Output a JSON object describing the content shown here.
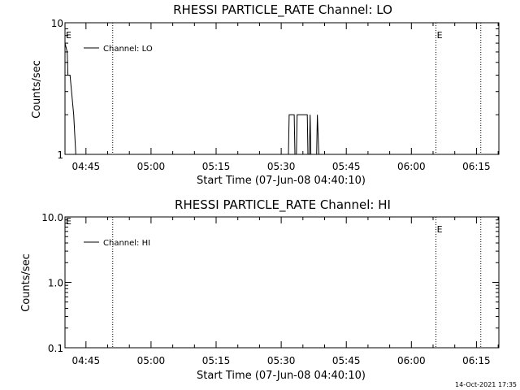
{
  "chart_data": [
    {
      "type": "line",
      "title": "RHESSI PARTICLE_RATE Channel: LO",
      "xlabel": "Start Time (07-Jun-08 04:40:10)",
      "ylabel": "Counts/sec",
      "yscale": "log",
      "ylim": [
        1,
        10
      ],
      "xlim": [
        "04:40:10",
        "06:20:10"
      ],
      "x_ticks": [
        "04:45",
        "05:00",
        "05:15",
        "05:30",
        "05:45",
        "06:00",
        "06:15"
      ],
      "y_ticks": [
        "1",
        "10"
      ],
      "legend": "top-left",
      "series": [
        {
          "name": "Channel: LO",
          "points": [
            [
              "04:40:10",
              7
            ],
            [
              "04:40:40",
              6
            ],
            [
              "04:40:50",
              4
            ],
            [
              "04:41:20",
              4
            ],
            [
              "04:42:10",
              2
            ],
            [
              "04:42:40",
              1
            ],
            [
              "05:31:40",
              1
            ],
            [
              "05:31:50",
              2
            ],
            [
              "05:33:00",
              2
            ],
            [
              "05:33:10",
              1
            ],
            [
              "05:33:30",
              1
            ],
            [
              "05:33:40",
              2
            ],
            [
              "05:36:00",
              2
            ],
            [
              "05:36:10",
              1
            ],
            [
              "05:36:30",
              1
            ],
            [
              "05:36:40",
              2
            ],
            [
              "05:36:50",
              1
            ],
            [
              "05:38:10",
              1
            ],
            [
              "05:38:20",
              2
            ],
            [
              "05:38:40",
              1
            ]
          ]
        }
      ],
      "markers": [
        {
          "time": "04:51:10",
          "label": ""
        },
        {
          "time": "06:05:40",
          "label": "E"
        },
        {
          "time": "06:16:00",
          "label": ""
        }
      ],
      "left_marker_label": "E"
    },
    {
      "type": "line",
      "title": "RHESSI PARTICLE_RATE Channel: HI",
      "xlabel": "Start Time (07-Jun-08 04:40:10)",
      "ylabel": "Counts/sec",
      "yscale": "log",
      "ylim": [
        0.1,
        10
      ],
      "xlim": [
        "04:40:10",
        "06:20:10"
      ],
      "x_ticks": [
        "04:45",
        "05:00",
        "05:15",
        "05:30",
        "05:45",
        "06:00",
        "06:15"
      ],
      "y_ticks": [
        "0.1",
        "1.0",
        "10.0"
      ],
      "legend": "top-left",
      "series": [
        {
          "name": "Channel: HI",
          "points": []
        }
      ],
      "markers": [
        {
          "time": "04:51:10",
          "label": ""
        },
        {
          "time": "06:05:40",
          "label": "E"
        },
        {
          "time": "06:16:00",
          "label": ""
        }
      ],
      "left_marker_label": "E"
    }
  ],
  "timestamp": "14-Oct-2021 17:35"
}
